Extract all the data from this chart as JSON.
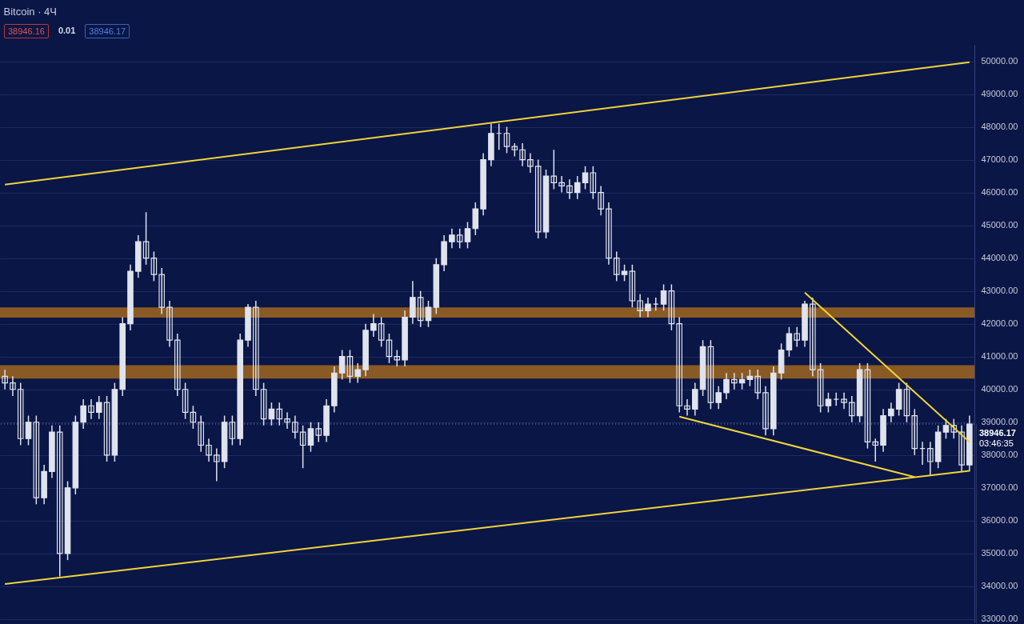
{
  "chart_data": {
    "type": "candlestick",
    "title": "Bitcoin · 4Ч",
    "annotations": [
      "38946.16",
      "0.01",
      "38946.17",
      "03:46:35"
    ],
    "categories": [
      null,
      null,
      null,
      null,
      null,
      null,
      null,
      null,
      null,
      null,
      null,
      null,
      null,
      null,
      null,
      null,
      null,
      null,
      null,
      null,
      null,
      null,
      null,
      null,
      null,
      null,
      null,
      null,
      null,
      null,
      null,
      null,
      null,
      null,
      null,
      null,
      null,
      null,
      null,
      null,
      null,
      null,
      null,
      null,
      null,
      null,
      null,
      null,
      null,
      null,
      null,
      null,
      null,
      null,
      null,
      null,
      null,
      null,
      null,
      null,
      null,
      null,
      null,
      null,
      null,
      null,
      null,
      null,
      null,
      null,
      null,
      null,
      null,
      null,
      null,
      null,
      null,
      null,
      null,
      null,
      null,
      null,
      null,
      null,
      null,
      null,
      null,
      null,
      null,
      null,
      null,
      null,
      null,
      null,
      null,
      null,
      null,
      null,
      null,
      null,
      null,
      null,
      null,
      null,
      null,
      null,
      null,
      null,
      null,
      null,
      null,
      null,
      null,
      null,
      null,
      null,
      null,
      null,
      null,
      null,
      null,
      null,
      null,
      null
    ],
    "ylim": [
      32900,
      50500
    ],
    "yticks": [
      {
        "value": 33000,
        "label": "33000.00"
      },
      {
        "value": 34000,
        "label": "34000.00"
      },
      {
        "value": 35000,
        "label": "35000.00"
      },
      {
        "value": 36000,
        "label": "36000.00"
      },
      {
        "value": 37000,
        "label": "37000.00"
      },
      {
        "value": 38000,
        "label": "38000.00"
      },
      {
        "value": 39000,
        "label": "39000.00"
      },
      {
        "value": 40000,
        "label": "40000.00"
      },
      {
        "value": 41000,
        "label": "41000.00"
      },
      {
        "value": 42000,
        "label": "42000.00"
      },
      {
        "value": 43000,
        "label": "43000.00"
      },
      {
        "value": 44000,
        "label": "44000.00"
      },
      {
        "value": 45000,
        "label": "45000.00"
      },
      {
        "value": 46000,
        "label": "46000.00"
      },
      {
        "value": 47000,
        "label": "47000.00"
      },
      {
        "value": 48000,
        "label": "48000.00"
      },
      {
        "value": 49000,
        "label": "49000.00"
      },
      {
        "value": 50000,
        "label": "50000.00"
      }
    ],
    "tick_labels": "y",
    "grid": "y",
    "bands": [
      {
        "axis": "y",
        "from": 42190,
        "to": 42500,
        "color": "#8a5a24"
      },
      {
        "axis": "y",
        "from": 40330,
        "to": 40740,
        "color": "#8a5a24"
      }
    ],
    "ref_lines": [
      {
        "axis": "y",
        "value": 38946.17,
        "label": "38946.17",
        "color": "#7d849c",
        "line_style": "dotted"
      }
    ],
    "series": [
      {
        "type": "candlestick",
        "color": "#dfe3ee",
        "ohlc": [
          [
            40400,
            40600,
            40000,
            40200
          ],
          [
            40200,
            40400,
            39800,
            40000
          ],
          [
            40000,
            40200,
            38300,
            38500
          ],
          [
            38500,
            39200,
            38300,
            39000
          ],
          [
            39000,
            39200,
            36500,
            36700
          ],
          [
            36700,
            37700,
            36500,
            37500
          ],
          [
            37500,
            38900,
            37300,
            38700
          ],
          [
            38700,
            38900,
            34300,
            35000
          ],
          [
            35000,
            37200,
            34800,
            37000
          ],
          [
            37000,
            39200,
            36800,
            39000
          ],
          [
            39000,
            39700,
            38800,
            39500
          ],
          [
            39500,
            39700,
            39100,
            39300
          ],
          [
            39300,
            39800,
            39100,
            39600
          ],
          [
            39600,
            39800,
            37800,
            38000
          ],
          [
            38000,
            40200,
            37800,
            40000
          ],
          [
            40000,
            42200,
            39800,
            42000
          ],
          [
            42000,
            43800,
            41800,
            43600
          ],
          [
            43600,
            44700,
            43400,
            44500
          ],
          [
            44500,
            45400,
            43800,
            44000
          ],
          [
            44000,
            44200,
            43300,
            43500
          ],
          [
            43500,
            43700,
            42300,
            42500
          ],
          [
            42500,
            42700,
            41300,
            41500
          ],
          [
            41500,
            41700,
            39800,
            40000
          ],
          [
            40000,
            40200,
            39100,
            39300
          ],
          [
            39300,
            39500,
            38800,
            39000
          ],
          [
            39000,
            39200,
            38100,
            38300
          ],
          [
            38300,
            38500,
            37800,
            38000
          ],
          [
            38000,
            38200,
            37200,
            37800
          ],
          [
            37800,
            39200,
            37600,
            39000
          ],
          [
            39000,
            39200,
            38300,
            38500
          ],
          [
            38500,
            41700,
            38300,
            41500
          ],
          [
            41500,
            42600,
            41300,
            42500
          ],
          [
            42500,
            42700,
            39800,
            40000
          ],
          [
            40000,
            40200,
            38900,
            39100
          ],
          [
            39100,
            39600,
            38900,
            39400
          ],
          [
            39400,
            39600,
            38900,
            39100
          ],
          [
            39100,
            39300,
            38800,
            39000
          ],
          [
            39000,
            39200,
            38500,
            38700
          ],
          [
            38700,
            38900,
            37600,
            38300
          ],
          [
            38300,
            39000,
            38100,
            38800
          ],
          [
            38800,
            39000,
            38400,
            38600
          ],
          [
            38600,
            39700,
            38400,
            39500
          ],
          [
            39500,
            40700,
            39300,
            40500
          ],
          [
            40500,
            41200,
            40300,
            41000
          ],
          [
            41000,
            41200,
            40200,
            40400
          ],
          [
            40400,
            40800,
            40200,
            40600
          ],
          [
            40600,
            42000,
            40400,
            41800
          ],
          [
            41800,
            42300,
            41600,
            42000
          ],
          [
            42000,
            42200,
            41300,
            41500
          ],
          [
            41500,
            41700,
            40800,
            41000
          ],
          [
            41000,
            41200,
            40700,
            40900
          ],
          [
            40900,
            42400,
            40700,
            42200
          ],
          [
            42200,
            43300,
            42000,
            42800
          ],
          [
            42800,
            43000,
            41900,
            42100
          ],
          [
            42100,
            42700,
            41900,
            42500
          ],
          [
            42500,
            44000,
            42300,
            43800
          ],
          [
            43800,
            44700,
            43600,
            44500
          ],
          [
            44500,
            44900,
            44300,
            44700
          ],
          [
            44700,
            44900,
            44300,
            44500
          ],
          [
            44500,
            45100,
            44300,
            44900
          ],
          [
            44900,
            45700,
            44700,
            45500
          ],
          [
            45500,
            47200,
            45300,
            47000
          ],
          [
            47000,
            48100,
            46800,
            47800
          ],
          [
            47800,
            48100,
            47300,
            47800
          ],
          [
            47800,
            48000,
            47200,
            47400
          ],
          [
            47400,
            47500,
            47100,
            47300
          ],
          [
            47300,
            47500,
            46800,
            47000
          ],
          [
            47000,
            47200,
            46600,
            46800
          ],
          [
            46800,
            47000,
            44600,
            44800
          ],
          [
            44800,
            46700,
            44600,
            46500
          ],
          [
            46500,
            47300,
            46100,
            46300
          ],
          [
            46300,
            46500,
            46000,
            46200
          ],
          [
            46200,
            46400,
            45800,
            46000
          ],
          [
            46000,
            46500,
            45800,
            46300
          ],
          [
            46300,
            46800,
            46100,
            46600
          ],
          [
            46600,
            46800,
            45800,
            46000
          ],
          [
            46000,
            46200,
            45300,
            45500
          ],
          [
            45500,
            45700,
            43800,
            44000
          ],
          [
            44000,
            44200,
            43300,
            43500
          ],
          [
            43500,
            43800,
            43300,
            43600
          ],
          [
            43600,
            43800,
            42500,
            42700
          ],
          [
            42700,
            42900,
            42200,
            42400
          ],
          [
            42400,
            42800,
            42200,
            42600
          ],
          [
            42600,
            42800,
            42400,
            42600
          ],
          [
            42600,
            43200,
            42400,
            43000
          ],
          [
            43000,
            43200,
            41800,
            42000
          ],
          [
            42000,
            42200,
            39300,
            39500
          ],
          [
            39500,
            39700,
            39200,
            39400
          ],
          [
            39400,
            40200,
            39200,
            40000
          ],
          [
            40000,
            41500,
            39800,
            41300
          ],
          [
            41300,
            41500,
            39400,
            39600
          ],
          [
            39600,
            40100,
            39400,
            39900
          ],
          [
            39900,
            40500,
            39700,
            40300
          ],
          [
            40300,
            40500,
            40000,
            40200
          ],
          [
            40200,
            40500,
            40000,
            40300
          ],
          [
            40300,
            40600,
            40100,
            40400
          ],
          [
            40400,
            40600,
            39700,
            39900
          ],
          [
            39900,
            40100,
            38600,
            38800
          ],
          [
            38800,
            40700,
            38600,
            40500
          ],
          [
            40500,
            41400,
            40300,
            41200
          ],
          [
            41200,
            41900,
            41000,
            41700
          ],
          [
            41700,
            41900,
            41300,
            41500
          ],
          [
            41500,
            42700,
            41300,
            42600
          ],
          [
            42600,
            42800,
            40400,
            40600
          ],
          [
            40600,
            40800,
            39300,
            39500
          ],
          [
            39500,
            39900,
            39300,
            39700
          ],
          [
            39700,
            39900,
            39500,
            39700
          ],
          [
            39700,
            39900,
            39400,
            39600
          ],
          [
            39600,
            39800,
            39000,
            39200
          ],
          [
            39200,
            40800,
            39000,
            40600
          ],
          [
            40600,
            40800,
            38200,
            38400
          ],
          [
            38400,
            38500,
            37800,
            38300
          ],
          [
            38300,
            39400,
            38100,
            39200
          ],
          [
            39200,
            39600,
            39000,
            39400
          ],
          [
            39400,
            40200,
            39200,
            40000
          ],
          [
            40000,
            40200,
            39000,
            39200
          ],
          [
            39200,
            39400,
            38000,
            38200
          ],
          [
            38200,
            38400,
            37700,
            38200
          ],
          [
            38200,
            38400,
            37400,
            37800
          ],
          [
            37800,
            38900,
            37600,
            38700
          ],
          [
            38700,
            39100,
            38500,
            38900
          ],
          [
            38900,
            39100,
            38500,
            38700
          ],
          [
            38700,
            38900,
            37500,
            37700
          ],
          [
            37700,
            39200,
            37500,
            38946
          ]
        ]
      },
      {
        "type": "line",
        "color": "#f0d43a",
        "values": [
          46240,
          null,
          null,
          null,
          null,
          null,
          null,
          null,
          null,
          null,
          null,
          null,
          null,
          null,
          null,
          null,
          null,
          null,
          null,
          null,
          null,
          null,
          null,
          null,
          null,
          null,
          null,
          null,
          null,
          null,
          null,
          null,
          null,
          null,
          null,
          null,
          null,
          null,
          null,
          null,
          null,
          null,
          null,
          null,
          null,
          null,
          null,
          null,
          null,
          null,
          null,
          null,
          null,
          null,
          null,
          null,
          null,
          null,
          null,
          null,
          null,
          null,
          null,
          null,
          null,
          null,
          null,
          null,
          null,
          null,
          null,
          null,
          null,
          null,
          null,
          null,
          null,
          null,
          null,
          null,
          null,
          null,
          null,
          null,
          null,
          null,
          null,
          null,
          null,
          null,
          null,
          null,
          null,
          null,
          null,
          null,
          null,
          null,
          null,
          null,
          null,
          null,
          null,
          null,
          null,
          null,
          null,
          null,
          null,
          null,
          null,
          null,
          null,
          null,
          null,
          null,
          null,
          null,
          null,
          null,
          null,
          null,
          null,
          49970
        ]
      },
      {
        "type": "line",
        "color": "#f0d43a",
        "values": [
          34070,
          null,
          null,
          null,
          null,
          null,
          null,
          null,
          null,
          null,
          null,
          null,
          null,
          null,
          null,
          null,
          null,
          null,
          null,
          null,
          null,
          null,
          null,
          null,
          null,
          null,
          null,
          null,
          null,
          null,
          null,
          null,
          null,
          null,
          null,
          null,
          null,
          null,
          null,
          null,
          null,
          null,
          null,
          null,
          null,
          null,
          null,
          null,
          null,
          null,
          null,
          null,
          null,
          null,
          null,
          null,
          null,
          null,
          null,
          null,
          null,
          null,
          null,
          null,
          null,
          null,
          null,
          null,
          null,
          null,
          null,
          null,
          null,
          null,
          null,
          null,
          null,
          null,
          null,
          null,
          null,
          null,
          null,
          null,
          null,
          null,
          null,
          null,
          null,
          null,
          null,
          null,
          null,
          null,
          null,
          null,
          null,
          null,
          null,
          null,
          null,
          null,
          null,
          null,
          null,
          null,
          null,
          null,
          null,
          null,
          null,
          null,
          null,
          null,
          null,
          null,
          null,
          null,
          null,
          null,
          null,
          null,
          null,
          37520
        ]
      },
      {
        "type": "line",
        "color": "#f0d43a",
        "values": [
          null,
          null,
          null,
          null,
          null,
          null,
          null,
          null,
          null,
          null,
          null,
          null,
          null,
          null,
          null,
          null,
          null,
          null,
          null,
          null,
          null,
          null,
          null,
          null,
          null,
          null,
          null,
          null,
          null,
          null,
          null,
          null,
          null,
          null,
          null,
          null,
          null,
          null,
          null,
          null,
          null,
          null,
          null,
          null,
          null,
          null,
          null,
          null,
          null,
          null,
          null,
          null,
          null,
          null,
          null,
          null,
          null,
          null,
          null,
          null,
          null,
          null,
          null,
          null,
          null,
          null,
          null,
          null,
          null,
          null,
          null,
          null,
          null,
          null,
          null,
          null,
          null,
          null,
          null,
          null,
          null,
          null,
          null,
          null,
          null,
          null,
          null,
          null,
          null,
          null,
          null,
          null,
          null,
          null,
          null,
          null,
          null,
          null,
          null,
          null,
          null,
          null,
          42950,
          null,
          null,
          null,
          null,
          null,
          null,
          null,
          null,
          null,
          null,
          null,
          null,
          null,
          null,
          null,
          null,
          null,
          null,
          null,
          null,
          38400
        ]
      },
      {
        "type": "line",
        "color": "#f0d43a",
        "values": [
          null,
          null,
          null,
          null,
          null,
          null,
          null,
          null,
          null,
          null,
          null,
          null,
          null,
          null,
          null,
          null,
          null,
          null,
          null,
          null,
          null,
          null,
          null,
          null,
          null,
          null,
          null,
          null,
          null,
          null,
          null,
          null,
          null,
          null,
          null,
          null,
          null,
          null,
          null,
          null,
          null,
          null,
          null,
          null,
          null,
          null,
          null,
          null,
          null,
          null,
          null,
          null,
          null,
          null,
          null,
          null,
          null,
          null,
          null,
          null,
          null,
          null,
          null,
          null,
          null,
          null,
          null,
          null,
          null,
          null,
          null,
          null,
          null,
          null,
          null,
          null,
          null,
          null,
          null,
          null,
          null,
          null,
          null,
          null,
          null,
          null,
          39170,
          null,
          null,
          null,
          null,
          null,
          null,
          null,
          null,
          null,
          null,
          null,
          null,
          null,
          null,
          null,
          null,
          null,
          null,
          null,
          null,
          null,
          null,
          null,
          null,
          null,
          null,
          null,
          null,
          null,
          37330,
          null,
          null,
          null,
          null,
          null,
          null,
          null
        ]
      }
    ]
  }
}
